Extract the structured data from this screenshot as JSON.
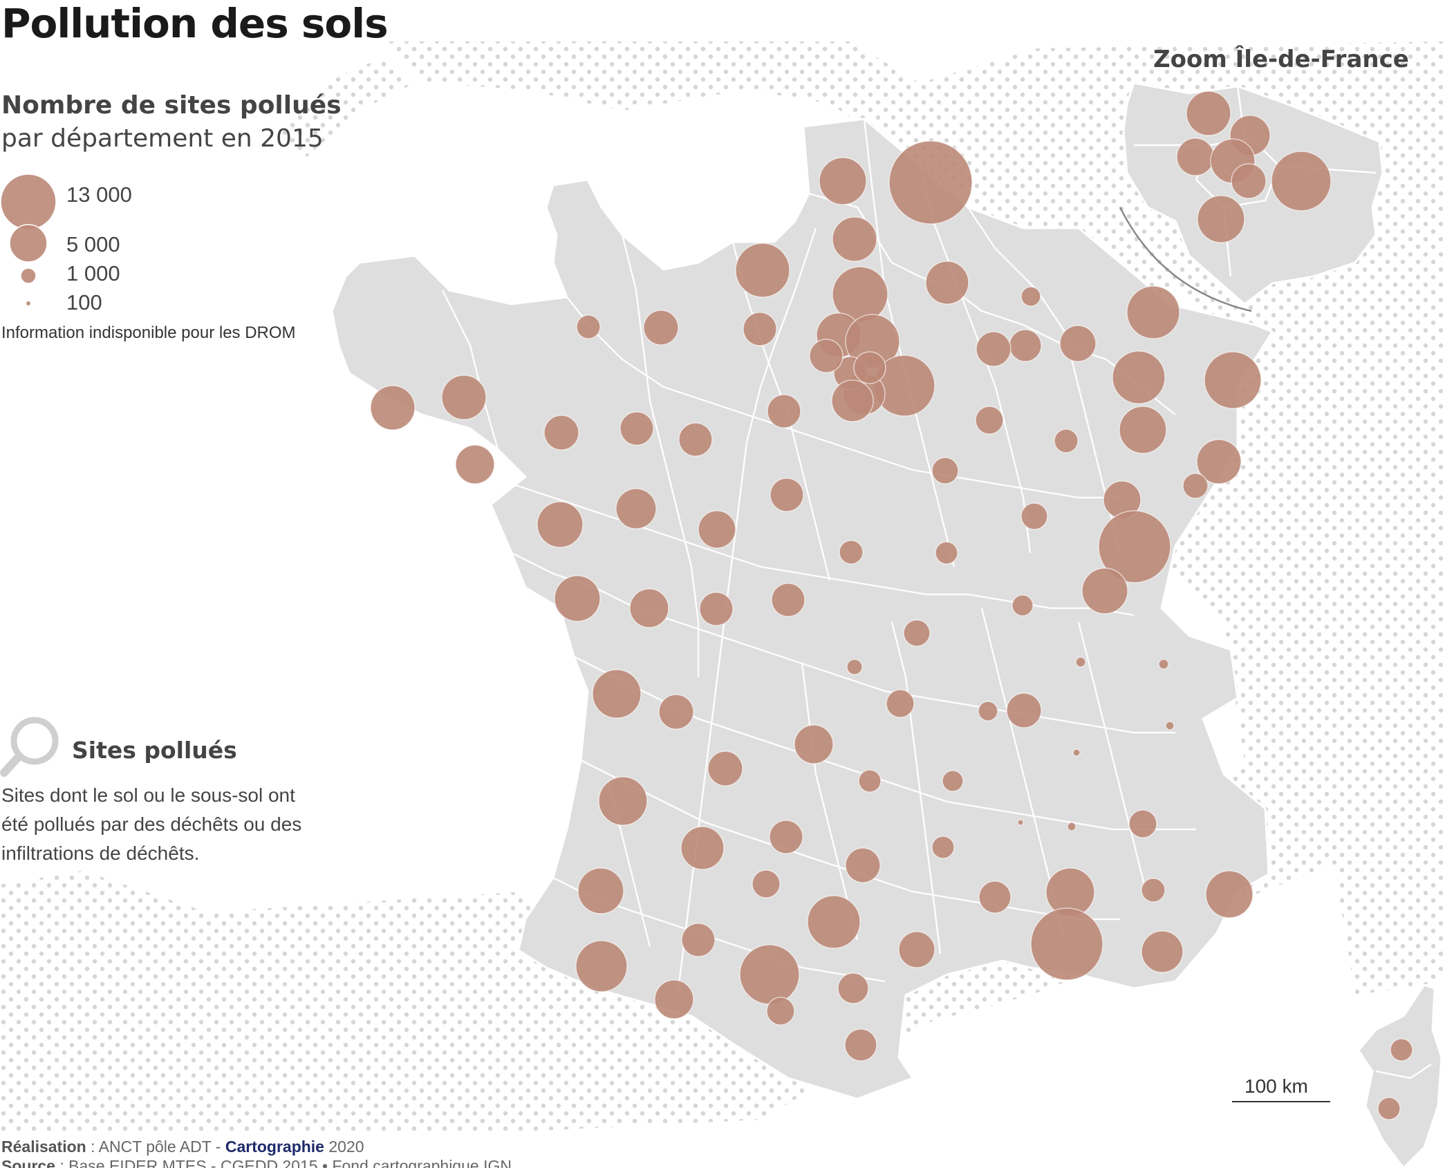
{
  "title": "Pollution des sols",
  "legend": {
    "title": "Nombre de sites pollués",
    "subtitle": "par département en 2015",
    "sizes": [
      {
        "label": "13 000",
        "value": 13000
      },
      {
        "label": "5 000",
        "value": 5000
      },
      {
        "label": "1 000",
        "value": 1000
      },
      {
        "label": "100",
        "value": 100
      }
    ],
    "note": "Information indisponible pour les DROM"
  },
  "zoom_title": "Zoom Île-de-France",
  "info_box": {
    "title": "Sites pollués",
    "text": "Sites dont le sol ou le sous-sol ont été pollués par des déchêts ou des infiltrations de déchêts."
  },
  "scale": {
    "label": "100 km"
  },
  "credits": {
    "realisation_label": "Réalisation",
    "realisation_text": " : ANCT pôle ADT - ",
    "cartographie": "Cartographie",
    "year": " 2020",
    "source_label": "Source",
    "source_text": " : Base EIDER MTES - CGEDD 2015 •  Fond cartographique IGN"
  },
  "colors": {
    "circle": "#bb8877",
    "land": "#dedede",
    "border": "#ffffff",
    "sea_dots": "#d4d4d4"
  }
}
